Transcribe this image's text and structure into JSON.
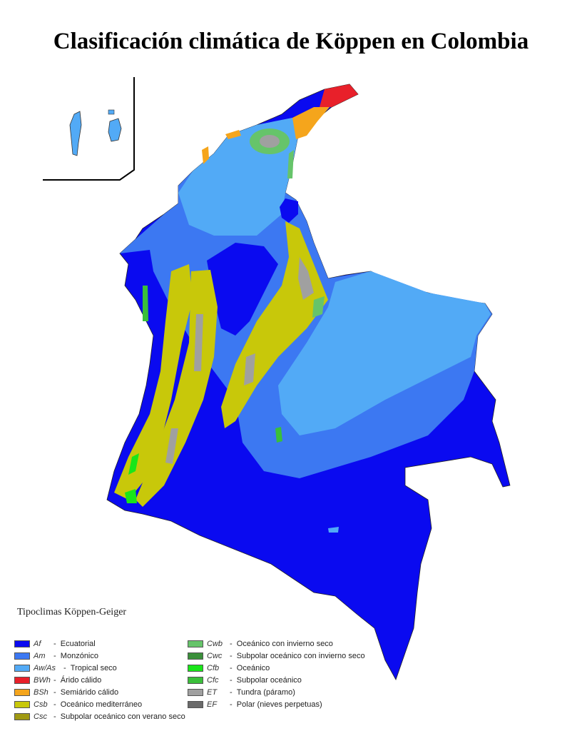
{
  "title": "Clasificación climática de Köppen en Colombia",
  "legend": {
    "title": "Tipoclimas Köppen-Geiger",
    "column1": [
      {
        "code": "Af",
        "sep": "-",
        "label": "Ecuatorial",
        "color": "#0a0af0"
      },
      {
        "code": "Am",
        "sep": "-",
        "label": "Monzónico",
        "color": "#3c78f2"
      },
      {
        "code": "Aw/As",
        "sep": "-",
        "label": "Tropical seco",
        "color": "#52aaf6"
      },
      {
        "code": "BWh",
        "sep": "-",
        "label": "Árido cálido",
        "color": "#e8202a"
      },
      {
        "code": "BSh",
        "sep": "-",
        "label": "Semiárido cálido",
        "color": "#f5a51c"
      },
      {
        "code": "Csb",
        "sep": "-",
        "label": "Oceánico mediterráneo",
        "color": "#c8c80a"
      },
      {
        "code": "Csc",
        "sep": "-",
        "label": "Subpolar oceánico  con verano seco",
        "color": "#a09a12"
      }
    ],
    "column2": [
      {
        "code": "Cwb",
        "sep": "-",
        "label": "Oceánico con invierno seco",
        "color": "#66c46a"
      },
      {
        "code": "Cwc",
        "sep": "-",
        "label": "Subpolar oceánico con invierno seco",
        "color": "#3a8f3a"
      },
      {
        "code": "Cfb",
        "sep": "-",
        "label": "Oceánico",
        "color": "#19e619"
      },
      {
        "code": "Cfc",
        "sep": "-",
        "label": "Subpolar oceánico",
        "color": "#3abf3a"
      },
      {
        "code": "ET",
        "sep": "-",
        "label": "Tundra (páramo)",
        "color": "#a0a0a0"
      },
      {
        "code": "EF",
        "sep": "-",
        "label": "Polar (nieves perpetuas)",
        "color": "#6a6a6a"
      }
    ]
  }
}
